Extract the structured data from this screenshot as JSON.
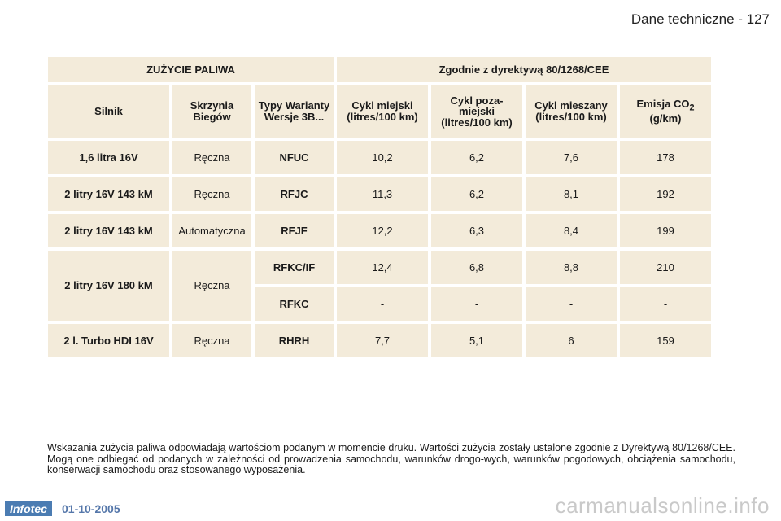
{
  "header": {
    "title": "Dane techniczne - 127"
  },
  "table": {
    "title_left": "ZUŻYCIE PALIWA",
    "title_right": "Zgodnie z dyrektywą 80/1268/CEE",
    "columns": {
      "engine": "Silnik",
      "gearbox": "Skrzynia Biegów",
      "types": "Typy Warianty Wersje 3B...",
      "urban": "Cykl miejski (litres/100 km)",
      "extra_urban": "Cykl poza-miejski (litres/100 km)",
      "combined": "Cykl mieszany (litres/100 km)",
      "co2_prefix": "Emisja CO",
      "co2_sub": "2",
      "co2_suffix": " (g/km)"
    },
    "rows": [
      {
        "engine": "1,6 litra 16V",
        "gearbox": "Ręczna",
        "type": "NFUC",
        "urban": "10,2",
        "extra": "6,2",
        "combined": "7,6",
        "co2": "178"
      },
      {
        "engine": "2 litry 16V 143 kM",
        "gearbox": "Ręczna",
        "type": "RFJC",
        "urban": "11,3",
        "extra": "6,2",
        "combined": "8,1",
        "co2": "192"
      },
      {
        "engine": "2 litry 16V 143 kM",
        "gearbox": "Automatyczna",
        "type": "RFJF",
        "urban": "12,2",
        "extra": "6,3",
        "combined": "8,4",
        "co2": "199"
      },
      {
        "engine": "2 litry 16V 180 kM",
        "gearbox": "Ręczna",
        "type": "RFKC/IF",
        "urban": "12,4",
        "extra": "6,8",
        "combined": "8,8",
        "co2": "210"
      },
      {
        "type": "RFKC",
        "urban": "-",
        "extra": "-",
        "combined": "-",
        "co2": "-"
      },
      {
        "engine": "2 l. Turbo HDI 16V",
        "gearbox": "Ręczna",
        "type": "RHRH",
        "urban": "7,7",
        "extra": "5,1",
        "combined": "6",
        "co2": "159"
      }
    ]
  },
  "note": "Wskazania zużycia paliwa odpowiadają wartościom podanym w momencie druku. Wartości zużycia zostały ustalone zgodnie z Dyrektywą 80/1268/CEE. Mogą one odbiegać od podanych w zależności od prowadzenia samochodu, warunków drogo-wych, warunków pogodowych, obciążenia samochodu, konserwacji samochodu oraz stosowanego wyposażenia.",
  "footer": {
    "logo": "Infotec",
    "date": "01-10-2005",
    "watermark": "carmanualsonline.info"
  }
}
